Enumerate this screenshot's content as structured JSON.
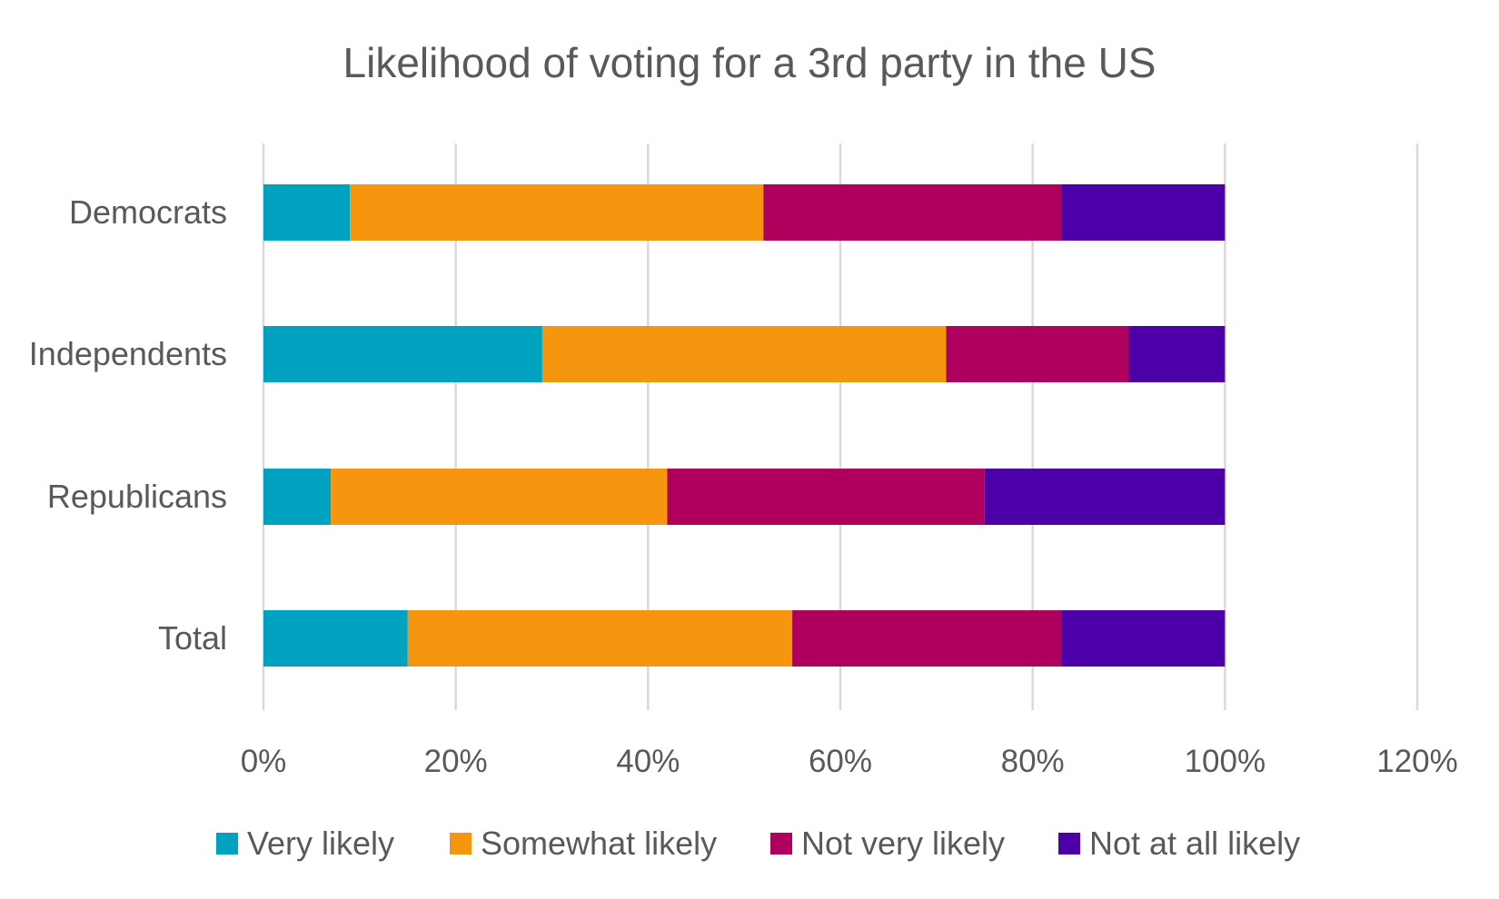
{
  "chart_data": {
    "type": "bar",
    "orientation": "horizontal",
    "stacked": true,
    "title": "Likelihood of voting for a 3rd party in the US",
    "categories": [
      "Democrats",
      "Independents",
      "Republicans",
      "Total"
    ],
    "series": [
      {
        "name": "Very likely",
        "color": "#00a2c0",
        "values": [
          9,
          29,
          7,
          15
        ]
      },
      {
        "name": "Somewhat likely",
        "color": "#f5960e",
        "values": [
          43,
          42,
          35,
          40
        ]
      },
      {
        "name": "Not very likely",
        "color": "#b0005e",
        "values": [
          31,
          19,
          33,
          28
        ]
      },
      {
        "name": "Not at all likely",
        "color": "#4b00a8",
        "values": [
          17,
          10,
          25,
          17
        ]
      }
    ],
    "xlim": [
      0,
      120
    ],
    "xticks": [
      0,
      20,
      40,
      60,
      80,
      100,
      120
    ],
    "xtick_labels": [
      "0%",
      "20%",
      "40%",
      "60%",
      "80%",
      "100%",
      "120%"
    ],
    "xlabel": "",
    "ylabel": "",
    "grid": true,
    "legend_position": "bottom"
  }
}
